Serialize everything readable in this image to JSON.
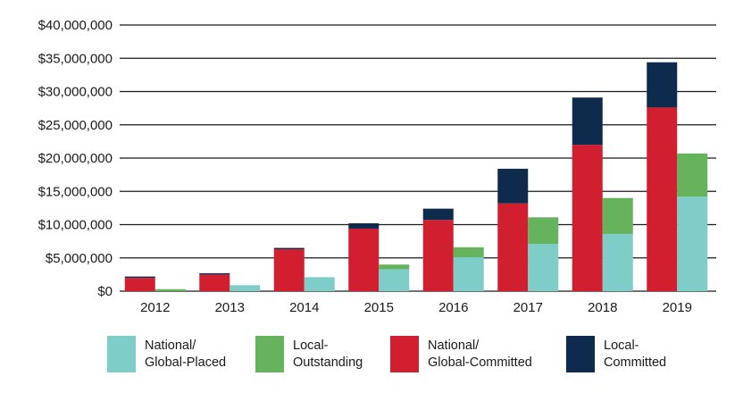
{
  "chart_data": {
    "type": "bar",
    "stacked": true,
    "categories": [
      "2012",
      "2013",
      "2014",
      "2015",
      "2016",
      "2017",
      "2018",
      "2019"
    ],
    "ylim": [
      0,
      40000000
    ],
    "yticks": [
      "$0",
      "$5,000,000",
      "$10,000,000",
      "$15,000,000",
      "$20,000,000",
      "$25,000,000",
      "$30,000,000",
      "$35,000,000",
      "$40,000,000"
    ],
    "ytick_values": [
      0,
      5000000,
      10000000,
      15000000,
      20000000,
      25000000,
      30000000,
      35000000,
      40000000
    ],
    "grid": true,
    "legend_position": "bottom",
    "series": [
      {
        "name": "National/ Global-Placed",
        "stack": "local",
        "color": "#7ecdc8",
        "values": [
          0,
          900000,
          2100000,
          3300000,
          5100000,
          7100000,
          8600000,
          14200000
        ]
      },
      {
        "name": "Local- Outstanding",
        "stack": "local",
        "color": "#66b35e",
        "values": [
          300000,
          0,
          0,
          700000,
          1500000,
          4000000,
          5400000,
          6500000
        ]
      },
      {
        "name": "National/ Global-Committed",
        "stack": "national",
        "color": "#d21f2f",
        "values": [
          2000000,
          2500000,
          6300000,
          9400000,
          10700000,
          13200000,
          22000000,
          27600000
        ]
      },
      {
        "name": "Local- Committed",
        "stack": "national",
        "color": "#0e2b4d",
        "values": [
          200000,
          200000,
          200000,
          800000,
          1700000,
          5200000,
          7100000,
          6800000
        ]
      }
    ]
  },
  "legend": [
    {
      "line1": "National/",
      "line2": "Global-Placed",
      "color": "#7ecdc8"
    },
    {
      "line1": "Local-",
      "line2": "Outstanding",
      "color": "#66b35e"
    },
    {
      "line1": "National/",
      "line2": "Global-Committed",
      "color": "#d21f2f"
    },
    {
      "line1": "Local-",
      "line2": "Committed",
      "color": "#0e2b4d"
    }
  ]
}
